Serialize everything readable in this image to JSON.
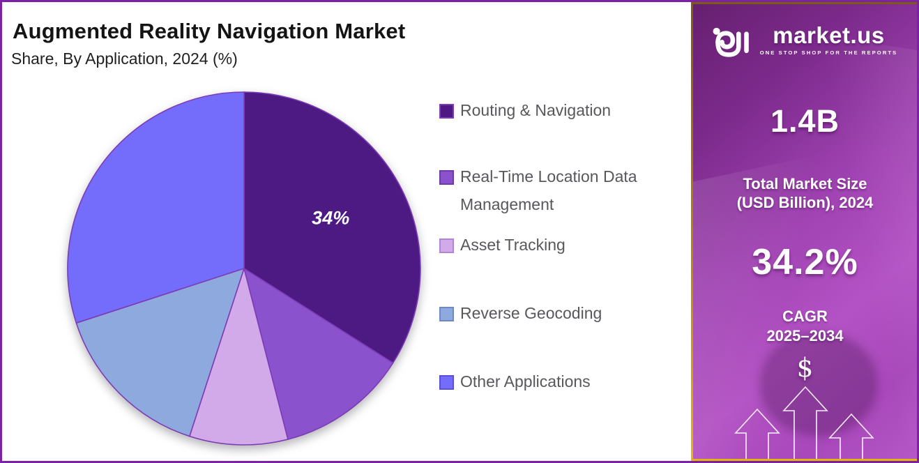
{
  "header": {
    "title": "Augmented Reality Navigation Market",
    "subtitle": "Share, By Application, 2024 (%)"
  },
  "chart_data": {
    "type": "pie",
    "title": "Augmented Reality Navigation Market Share, By Application, 2024 (%)",
    "categories": [
      "Routing & Navigation",
      "Real-Time Location Data Management",
      "Asset Tracking",
      "Reverse Geocoding",
      "Other Applications"
    ],
    "values": [
      34,
      12,
      9,
      15,
      30
    ],
    "unit": "%",
    "colors": [
      "#4c1a82",
      "#8b52ce",
      "#d2a9e9",
      "#8ea9de",
      "#746dfb"
    ],
    "swatch_border_colors": [
      "#7d3cb5",
      "#6d3aa8",
      "#b185d6",
      "#7089c4",
      "#5a50d8"
    ],
    "slice_stroke": "#7d3cb5",
    "data_labels": [
      "34%",
      "",
      "",
      "",
      ""
    ],
    "start_angle": 0,
    "direction": "clockwise",
    "legend_position": "right",
    "grid": false
  },
  "sidebar": {
    "brand": {
      "name": "market.us",
      "tagline": "ONE STOP SHOP FOR THE REPORTS",
      "logo_icon": "market-us-logo"
    },
    "market_size": {
      "value": "1.4B",
      "label_line1": "Total Market Size",
      "label_line2": "(USD Billion), 2024"
    },
    "cagr": {
      "value": "34.2%",
      "label": "CAGR",
      "period": "2025–2034"
    },
    "currency_symbol": "$"
  },
  "colors": {
    "outer_border": "#7e22a5",
    "panel_border_gold": "#b8860b",
    "panel_gradient_start": "#66206f",
    "panel_gradient_mid": "#a143b3",
    "panel_gradient_end": "#b557c7",
    "legend_text": "#58585c",
    "title_text": "#141414"
  }
}
